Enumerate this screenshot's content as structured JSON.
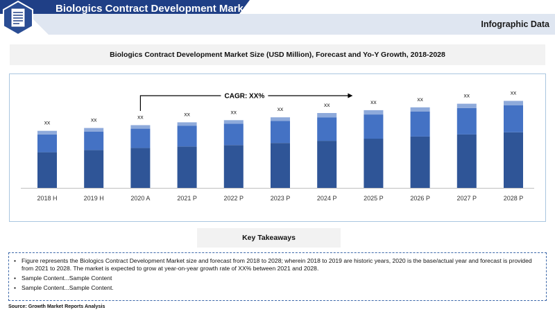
{
  "header": {
    "title": "Biologics Contract Development Market",
    "subtitle": "Infographic Data",
    "colors": {
      "banner": "#1f3f86",
      "banner_light": "#dfe6f1",
      "badge": "#2a4d94"
    },
    "badge_icon": "document-icon"
  },
  "chart_title": "Biologics Contract Development Market Size (USD Million), Forecast and Yo-Y Growth, 2018-2028",
  "chart_data": {
    "type": "bar",
    "stacked": true,
    "categories": [
      "2018 H",
      "2019 H",
      "2020 A",
      "2021 P",
      "2022 P",
      "2023 P",
      "2024 P",
      "2025 P",
      "2026 P",
      "2027 P",
      "2028 P"
    ],
    "series": [
      {
        "values": [
          50,
          53,
          56,
          58,
          60,
          63,
          66,
          69,
          72,
          75,
          78
        ],
        "color": "#2f5597"
      },
      {
        "values": [
          25,
          26,
          27,
          29,
          30,
          31,
          33,
          34,
          35,
          37,
          38
        ],
        "color": "#4472c4"
      },
      {
        "values": [
          5,
          5,
          5,
          5,
          5,
          5,
          6,
          6,
          6,
          6,
          6
        ],
        "color": "#8eaadb"
      }
    ],
    "data_labels": [
      "xx",
      "xx",
      "xx",
      "xx",
      "xx",
      "xx",
      "xx",
      "xx",
      "xx",
      "xx",
      "xx"
    ],
    "ylim": [
      0,
      140
    ],
    "grid": false,
    "legend": "none",
    "annotation": "CAGR: XX%"
  },
  "key_takeaways": {
    "title": "Key Takeaways",
    "items": [
      "Figure represents the Biologics Contract Development Market  size and forecast from 2018 to 2028; wherein 2018 to 2019 are historic years, 2020 is the base/actual year and forecast is provided from 2021 to 2028. The market is expected to grow at year-on-year growth rate of XX% between 2021 and 2028.",
      "Sample Content...Sample Content",
      "Sample Content...Sample Content."
    ],
    "bullet": "•"
  },
  "source": "Source: Growth Market Reports Analysis"
}
